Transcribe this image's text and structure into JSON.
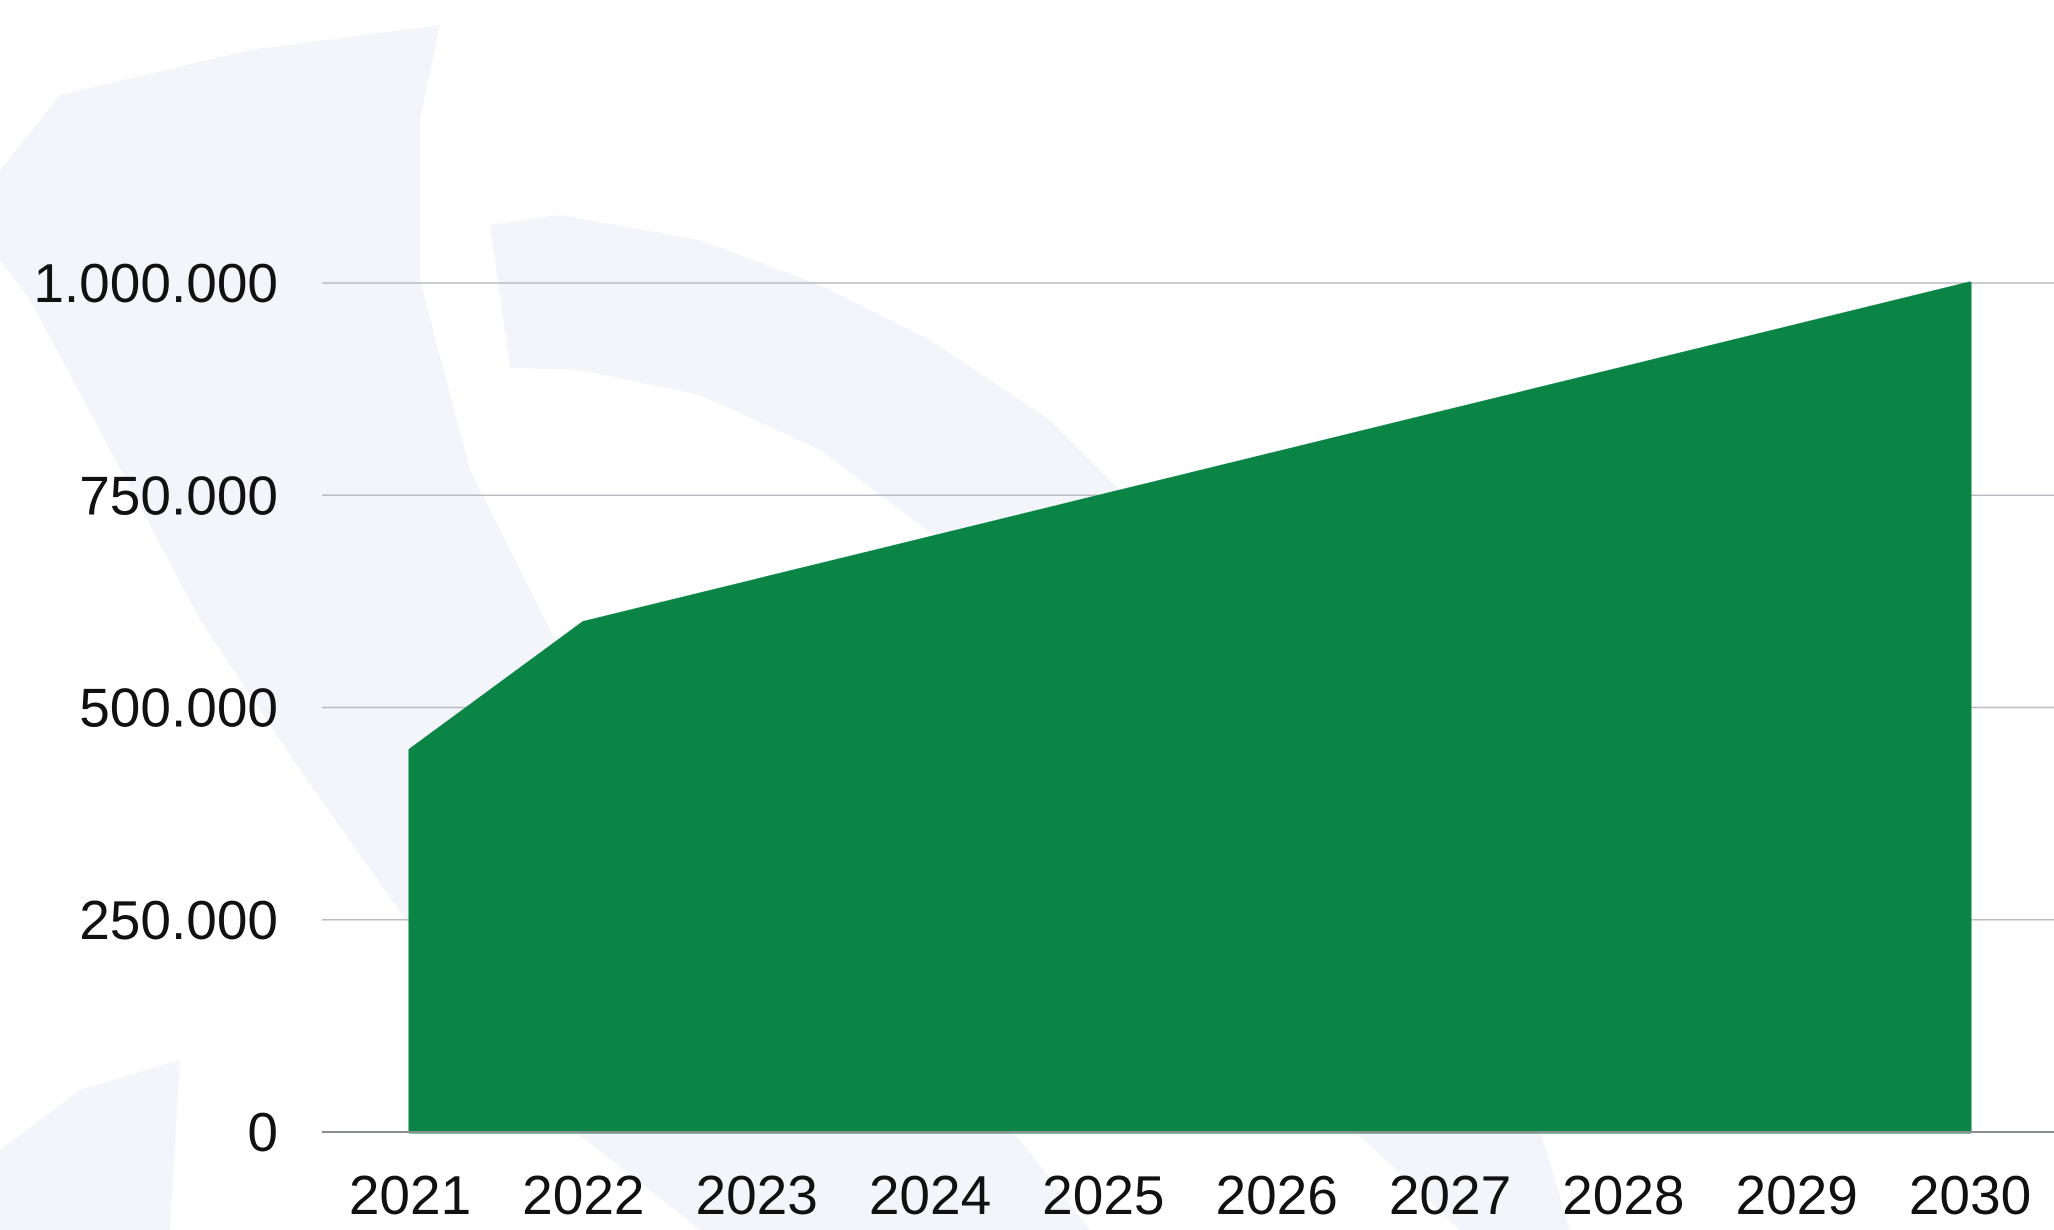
{
  "chart_data": {
    "type": "area",
    "title": "",
    "xlabel": "",
    "ylabel": "",
    "x": [
      "2021",
      "2022",
      "2023",
      "2024",
      "2025",
      "2026",
      "2027",
      "2028",
      "2029",
      "2030"
    ],
    "series": [
      {
        "values": [
          450000,
          600000,
          650000,
          700000,
          750000,
          800000,
          850000,
          900000,
          950000,
          1000000
        ]
      }
    ],
    "ylim": [
      0,
      1000000
    ],
    "y_ticks": [
      0,
      250000,
      500000,
      750000,
      1000000
    ],
    "y_tick_labels": [
      "0",
      "250.000",
      "500.000",
      "750.000",
      "1.000.000"
    ],
    "grid": true,
    "legend": "none",
    "colors": {
      "fill": "#0a8546",
      "watermark": "#f4f5fa",
      "grid": "#b9bcc3"
    }
  }
}
